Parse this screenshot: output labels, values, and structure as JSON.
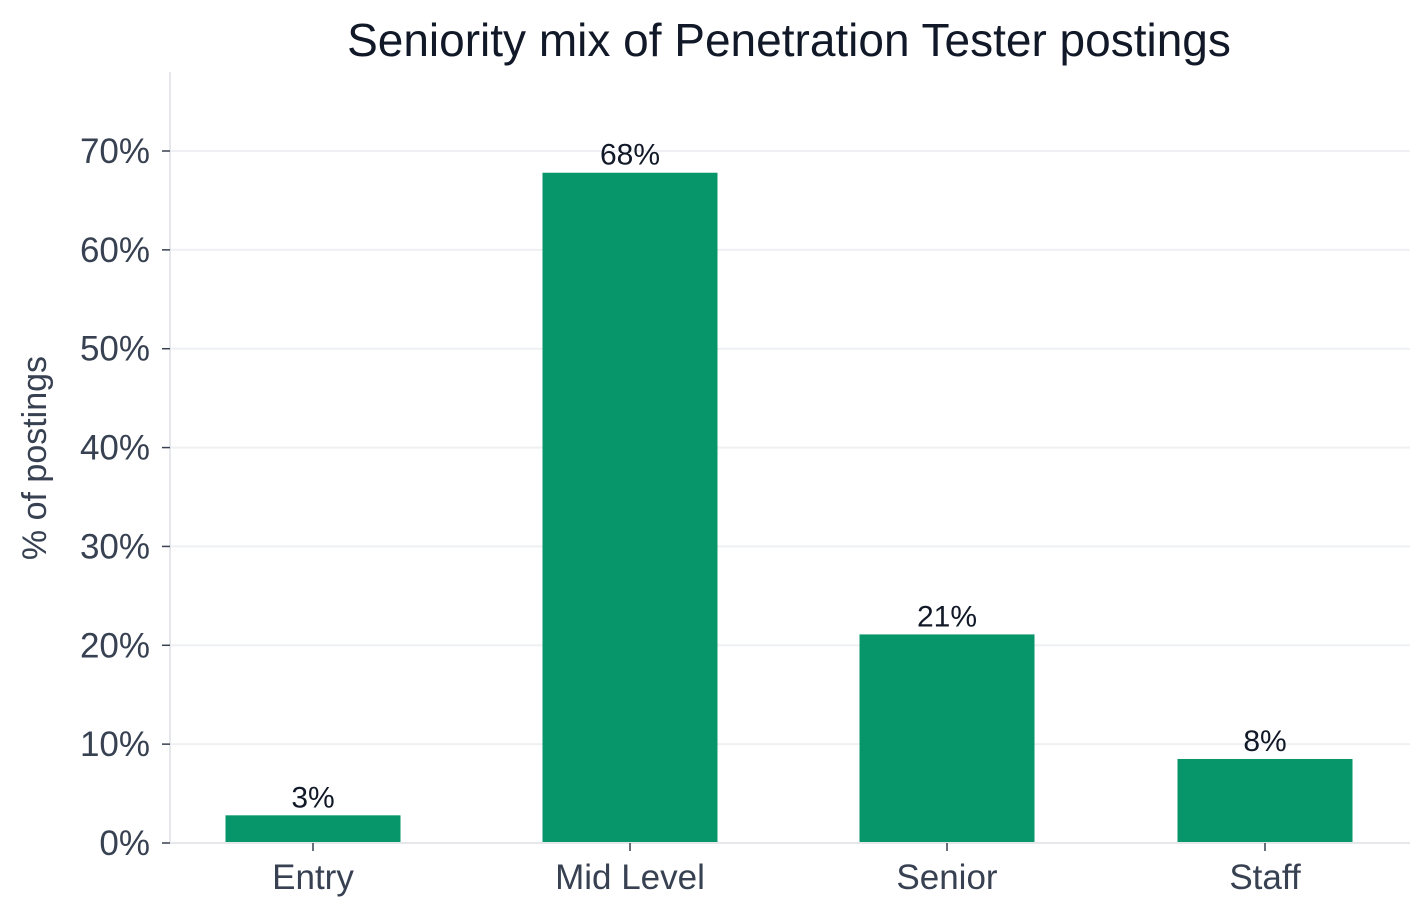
{
  "chart_data": {
    "type": "bar",
    "title": "Seniority mix of Penetration Tester postings",
    "xlabel": "",
    "ylabel": "% of postings",
    "categories": [
      "Entry",
      "Mid Level",
      "Senior",
      "Staff"
    ],
    "values": [
      2.8,
      67.8,
      21.1,
      8.5
    ],
    "data_labels": [
      "3%",
      "68%",
      "21%",
      "8%"
    ],
    "ylim": [
      0,
      78
    ],
    "yticks": [
      0,
      10,
      20,
      30,
      40,
      50,
      60,
      70
    ],
    "ytick_labels": [
      "0%",
      "10%",
      "20%",
      "30%",
      "40%",
      "50%",
      "60%",
      "70%"
    ],
    "grid": true,
    "bar_color": "#069669"
  }
}
